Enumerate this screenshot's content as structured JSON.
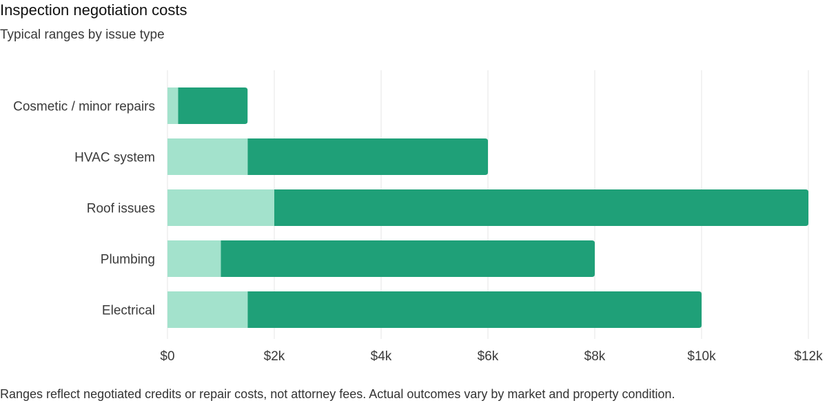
{
  "title": "Inspection negotiation costs",
  "subtitle": "Typical ranges by issue type",
  "footnote": "Ranges reflect negotiated credits or repair costs, not attorney fees. Actual outcomes vary by market and property condition.",
  "colors": {
    "low_segment": "#a3e2cc",
    "range_segment": "#1fa078",
    "gridline": "#e6e6e6"
  },
  "chart_data": {
    "type": "bar",
    "orientation": "horizontal",
    "stacked": true,
    "title": "Inspection negotiation costs",
    "subtitle": "Typical ranges by issue type",
    "categories": [
      "Cosmetic / minor repairs",
      "HVAC system",
      "Roof issues",
      "Plumbing",
      "Electrical"
    ],
    "series": [
      {
        "values": [
          200,
          1500,
          2000,
          1000,
          1500
        ]
      },
      {
        "values": [
          1300,
          4500,
          10000,
          7000,
          8500
        ]
      }
    ],
    "ranges": [
      {
        "category": "Cosmetic / minor repairs",
        "low": 200,
        "high": 1500
      },
      {
        "category": "HVAC system",
        "low": 1500,
        "high": 6000
      },
      {
        "category": "Roof issues",
        "low": 2000,
        "high": 12000
      },
      {
        "category": "Plumbing",
        "low": 1000,
        "high": 8000
      },
      {
        "category": "Electrical",
        "low": 1500,
        "high": 10000
      }
    ],
    "xlim": [
      0,
      12000
    ],
    "xticks": [
      0,
      2000,
      4000,
      6000,
      8000,
      10000,
      12000
    ],
    "xtick_labels": [
      "$0",
      "$2k",
      "$4k",
      "$6k",
      "$8k",
      "$10k",
      "$12k"
    ],
    "xlabel": "",
    "ylabel": "",
    "grid": "vertical",
    "legend": "none"
  }
}
